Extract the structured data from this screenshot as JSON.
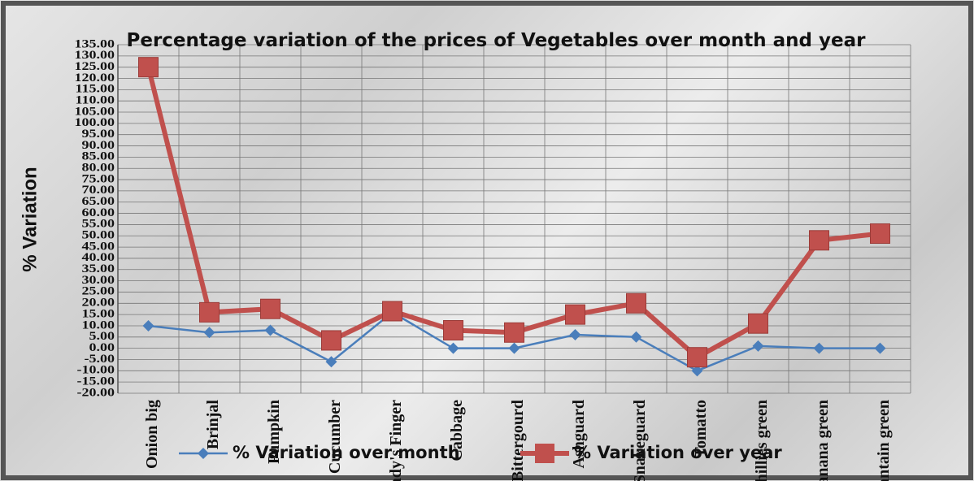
{
  "chart_data": {
    "type": "line",
    "title": "Percentage variation of the prices of Vegetables over month and year",
    "ylabel": "% Variation",
    "categories": [
      "Onion big",
      "Brinjal",
      "Pumpkin",
      "Cucumber",
      "Lady's Finger",
      "Cabbage",
      "Bittergourd",
      "Ashguard",
      "Snakeguard",
      "Tomatto",
      "Chillies green",
      "Banana green",
      "Plantain green"
    ],
    "series": [
      {
        "name": "%  Variation over month",
        "color": "#4a7ebb",
        "marker": "diamond",
        "values": [
          10,
          7,
          8,
          -6,
          16,
          0,
          0,
          6,
          5,
          -10,
          1,
          0,
          0
        ]
      },
      {
        "name": "%  Variation over year",
        "color": "#c0504d",
        "marker": "square",
        "values": [
          125,
          16,
          17.5,
          3.5,
          16.5,
          8,
          7,
          15,
          20,
          -4,
          11,
          48,
          51
        ]
      }
    ],
    "ylim": [
      -20,
      135
    ],
    "yticks": [
      {
        "value": -20,
        "label": "-20.00"
      },
      {
        "value": -15,
        "label": "-15.00"
      },
      {
        "value": -10,
        "label": "-10.00"
      },
      {
        "value": -5,
        "label": "-5.00"
      },
      {
        "value": 0,
        "label": "0.00"
      },
      {
        "value": 5,
        "label": "5.00"
      },
      {
        "value": 10,
        "label": "10.00"
      },
      {
        "value": 15,
        "label": "15.00"
      },
      {
        "value": 20,
        "label": "20.00"
      },
      {
        "value": 25,
        "label": "25.00"
      },
      {
        "value": 30,
        "label": "30.00"
      },
      {
        "value": 35,
        "label": "35.00"
      },
      {
        "value": 40,
        "label": "40.00"
      },
      {
        "value": 45,
        "label": "45.00"
      },
      {
        "value": 50,
        "label": "50.00"
      },
      {
        "value": 55,
        "label": "55.00"
      },
      {
        "value": 60,
        "label": "60.00"
      },
      {
        "value": 65,
        "label": "65.00"
      },
      {
        "value": 70,
        "label": "70.00"
      },
      {
        "value": 75,
        "label": "75.00"
      },
      {
        "value": 80,
        "label": "80.00"
      },
      {
        "value": 85,
        "label": "85.00"
      },
      {
        "value": 90,
        "label": "90.00"
      },
      {
        "value": 95,
        "label": "95.00"
      },
      {
        "value": 100,
        "label": "100.00"
      },
      {
        "value": 105,
        "label": "105.00"
      },
      {
        "value": 110,
        "label": "110.00"
      },
      {
        "value": 115,
        "label": "115.00"
      },
      {
        "value": 120,
        "label": "120.00"
      },
      {
        "value": 125,
        "label": "125.00"
      },
      {
        "value": 130,
        "label": "130.00"
      },
      {
        "value": 135,
        "label": "135.00"
      }
    ],
    "grid": true,
    "legend": "bottom"
  }
}
